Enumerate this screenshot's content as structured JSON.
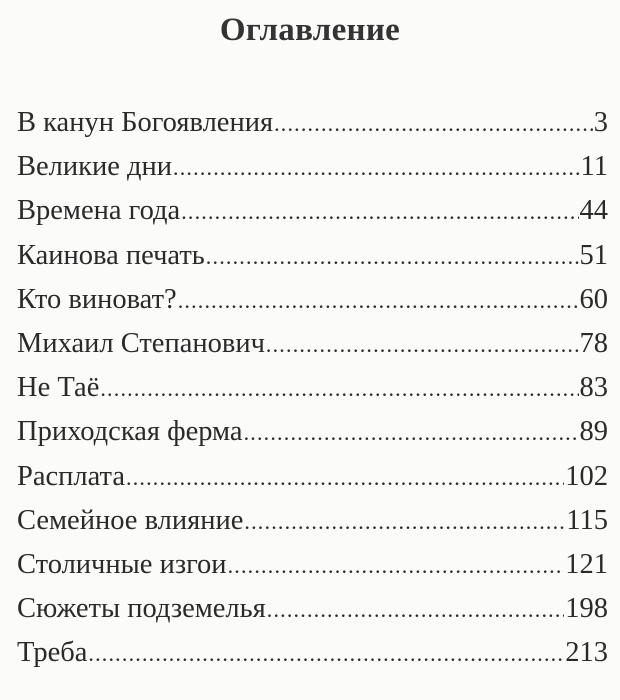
{
  "title": "Оглавление",
  "entries": [
    {
      "label": "В канун Богоявления",
      "page": "3"
    },
    {
      "label": "Великие дни",
      "page": "11"
    },
    {
      "label": "Времена года",
      "page": "44"
    },
    {
      "label": "Каинова печать",
      "page": "51"
    },
    {
      "label": "Кто виноват?",
      "page": "60"
    },
    {
      "label": "Михаил Степанович",
      "page": "78"
    },
    {
      "label": "Не Таё",
      "page": "83"
    },
    {
      "label": "Приходская ферма",
      "page": "89"
    },
    {
      "label": "Расплата",
      "page": "102"
    },
    {
      "label": "Семейное влияние",
      "page": "115"
    },
    {
      "label": "Столичные изгои",
      "page": "121"
    },
    {
      "label": "Сюжеты подземелья",
      "page": "198"
    },
    {
      "label": "Треба",
      "page": "213"
    }
  ]
}
